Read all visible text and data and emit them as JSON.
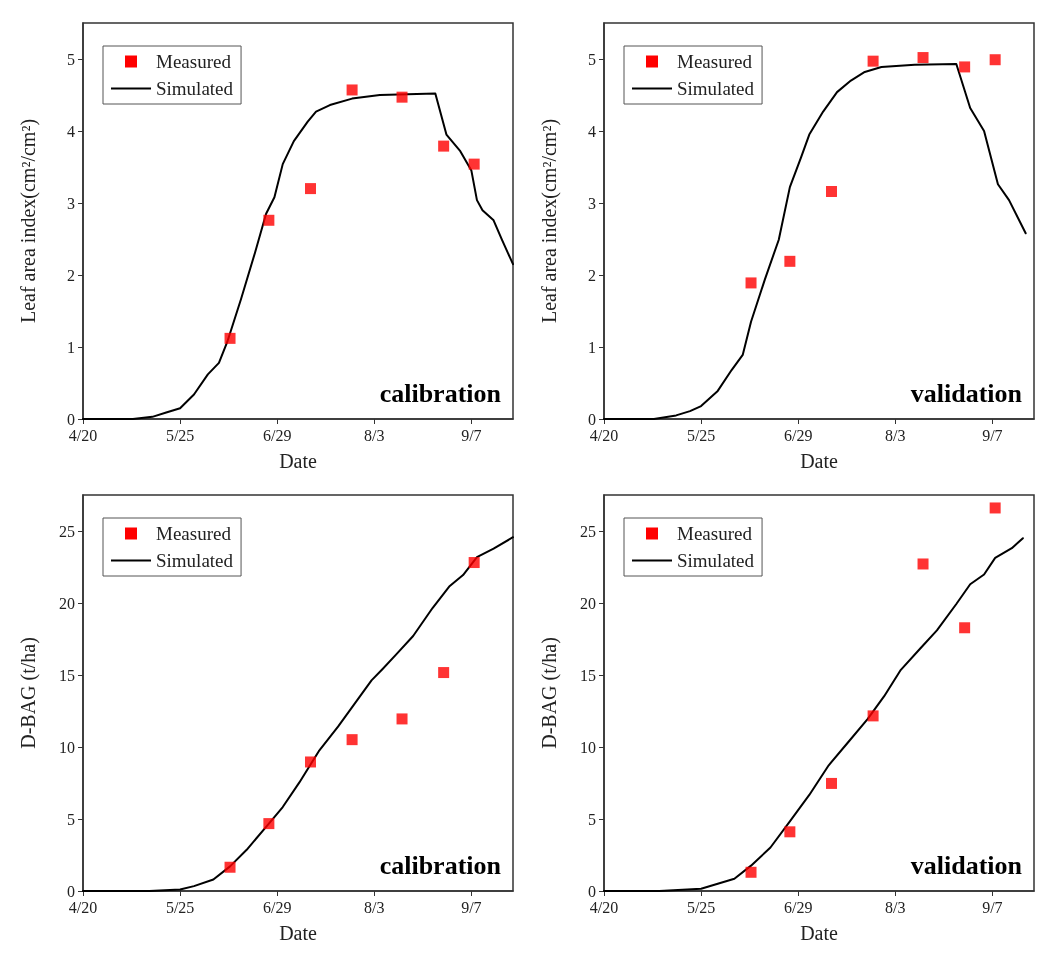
{
  "chart_data": [
    {
      "type": "scatter",
      "ylabel": "Leaf area index(cm²/cm²)",
      "xlabel": "Date",
      "annotations": [
        "calibration"
      ],
      "xlim": [
        "--04-20",
        "--09-22"
      ],
      "xticks": [
        {
          "value": "--04-20",
          "label": "4/20"
        },
        {
          "value": "--05-25",
          "label": "5/25"
        },
        {
          "value": "--06-29",
          "label": "6/29"
        },
        {
          "value": "--08-03",
          "label": "8/3"
        },
        {
          "value": "--09-07",
          "label": "9/7"
        }
      ],
      "ylim": [
        0,
        5.5
      ],
      "yticks": [
        0,
        1,
        2,
        3,
        4,
        5
      ],
      "grid": false,
      "legend": "top left",
      "series": [
        {
          "name": "Measured",
          "marker": "square",
          "color": "#ff0000",
          "x": [
            "--06-12",
            "--06-26",
            "--07-11",
            "--07-26",
            "--08-13",
            "--08-28",
            "--09-08"
          ],
          "values": [
            1.12,
            2.76,
            3.2,
            4.57,
            4.47,
            3.79,
            3.54
          ]
        },
        {
          "name": "Simulated",
          "type": "line",
          "marker": "none",
          "line_style": "solid",
          "color": "#000000",
          "x": [
            "--04-20",
            "--05-08",
            "--05-15",
            "--05-20",
            "--05-25",
            "--05-30",
            "--06-04",
            "--06-08",
            "--06-11",
            "--06-16",
            "--06-21",
            "--06-25",
            "--06-28",
            "--07-01",
            "--07-05",
            "--07-10",
            "--07-13",
            "--07-18",
            "--07-26",
            "--08-05",
            "--08-25",
            "--08-29",
            "--09-03",
            "--09-07",
            "--09-09",
            "--09-11",
            "--09-15",
            "--09-18",
            "--09-22"
          ],
          "values": [
            0,
            0,
            0.03,
            0.09,
            0.15,
            0.34,
            0.62,
            0.78,
            1.07,
            1.67,
            2.31,
            2.85,
            3.08,
            3.54,
            3.86,
            4.13,
            4.27,
            4.36,
            4.45,
            4.5,
            4.52,
            3.95,
            3.72,
            3.45,
            3.04,
            2.9,
            2.76,
            2.49,
            2.15
          ]
        }
      ]
    },
    {
      "type": "scatter",
      "ylabel": "Leaf area index(cm²/cm²)",
      "xlabel": "Date",
      "annotations": [
        "validation"
      ],
      "xlim": [
        "--04-20",
        "--09-22"
      ],
      "xticks": [
        {
          "value": "--04-20",
          "label": "4/20"
        },
        {
          "value": "--05-25",
          "label": "5/25"
        },
        {
          "value": "--06-29",
          "label": "6/29"
        },
        {
          "value": "--08-03",
          "label": "8/3"
        },
        {
          "value": "--09-07",
          "label": "9/7"
        }
      ],
      "ylim": [
        0,
        5.5
      ],
      "yticks": [
        0,
        1,
        2,
        3,
        4,
        5
      ],
      "grid": false,
      "legend": "top left",
      "series": [
        {
          "name": "Measured",
          "marker": "square",
          "color": "#ff0000",
          "x": [
            "--06-12",
            "--06-26",
            "--07-11",
            "--07-26",
            "--08-13",
            "--08-28",
            "--09-08"
          ],
          "values": [
            1.89,
            2.19,
            3.16,
            4.97,
            5.02,
            4.89,
            4.99
          ]
        },
        {
          "name": "Simulated",
          "type": "line",
          "marker": "none",
          "line_style": "solid",
          "color": "#000000",
          "x": [
            "--04-20",
            "--05-08",
            "--05-16",
            "--05-21",
            "--05-25",
            "--05-31",
            "--06-05",
            "--06-09",
            "--06-12",
            "--06-17",
            "--06-22",
            "--06-26",
            "--06-30",
            "--07-03",
            "--07-08",
            "--07-13",
            "--07-18",
            "--07-23",
            "--07-29",
            "--08-10",
            "--08-25",
            "--08-30",
            "--09-04",
            "--09-09",
            "--09-13",
            "--09-19"
          ],
          "values": [
            0,
            0,
            0.05,
            0.11,
            0.18,
            0.39,
            0.68,
            0.89,
            1.35,
            1.94,
            2.49,
            3.22,
            3.63,
            3.95,
            4.27,
            4.54,
            4.7,
            4.82,
            4.89,
            4.92,
            4.93,
            4.32,
            4.0,
            3.26,
            3.04,
            2.58
          ]
        }
      ]
    },
    {
      "type": "scatter",
      "ylabel": "D-BAG (t/ha)",
      "xlabel": "Date",
      "annotations": [
        "calibration"
      ],
      "xlim": [
        "--04-20",
        "--09-22"
      ],
      "xticks": [
        {
          "value": "--04-20",
          "label": "4/20"
        },
        {
          "value": "--05-25",
          "label": "5/25"
        },
        {
          "value": "--06-29",
          "label": "6/29"
        },
        {
          "value": "--08-03",
          "label": "8/3"
        },
        {
          "value": "--09-07",
          "label": "9/7"
        }
      ],
      "ylim": [
        0,
        27.5
      ],
      "yticks": [
        0,
        5,
        10,
        15,
        20,
        25
      ],
      "grid": false,
      "legend": "top left",
      "series": [
        {
          "name": "Measured",
          "marker": "square",
          "color": "#ff0000",
          "x": [
            "--06-12",
            "--06-26",
            "--07-11",
            "--07-26",
            "--08-13",
            "--08-28",
            "--09-08"
          ],
          "values": [
            1.65,
            4.68,
            8.96,
            10.51,
            11.95,
            15.17,
            22.81
          ]
        },
        {
          "name": "Simulated",
          "type": "line",
          "marker": "none",
          "line_style": "solid",
          "color": "#000000",
          "x": [
            "--04-20",
            "--05-14",
            "--05-25",
            "--05-30",
            "--06-06",
            "--06-12",
            "--06-18",
            "--06-26",
            "--07-01",
            "--07-07",
            "--07-14",
            "--07-21",
            "--07-27",
            "--08-02",
            "--08-06",
            "--08-11",
            "--08-17",
            "--08-24",
            "--08-30",
            "--09-04",
            "--09-09",
            "--09-15",
            "--09-22"
          ],
          "values": [
            0,
            0,
            0.11,
            0.34,
            0.8,
            1.71,
            2.86,
            4.68,
            5.83,
            7.54,
            9.71,
            11.43,
            13.03,
            14.63,
            15.42,
            16.45,
            17.71,
            19.65,
            21.14,
            21.94,
            23.19,
            23.77,
            24.57
          ]
        }
      ]
    },
    {
      "type": "scatter",
      "ylabel": "D-BAG (t/ha)",
      "xlabel": "Date",
      "annotations": [
        "validation"
      ],
      "xlim": [
        "--04-20",
        "--09-22"
      ],
      "xticks": [
        {
          "value": "--04-20",
          "label": "4/20"
        },
        {
          "value": "--05-25",
          "label": "5/25"
        },
        {
          "value": "--06-29",
          "label": "6/29"
        },
        {
          "value": "--08-03",
          "label": "8/3"
        },
        {
          "value": "--09-07",
          "label": "9/7"
        }
      ],
      "ylim": [
        0,
        27.5
      ],
      "yticks": [
        0,
        5,
        10,
        15,
        20,
        25
      ],
      "grid": false,
      "legend": "top left",
      "series": [
        {
          "name": "Measured",
          "marker": "square",
          "color": "#ff0000",
          "x": [
            "--06-12",
            "--06-26",
            "--07-11",
            "--07-26",
            "--08-13",
            "--08-28",
            "--09-08"
          ],
          "values": [
            1.3,
            4.11,
            7.47,
            12.16,
            22.71,
            18.28,
            26.6
          ]
        },
        {
          "name": "Simulated",
          "type": "line",
          "marker": "none",
          "line_style": "solid",
          "color": "#000000",
          "x": [
            "--04-20",
            "--05-10",
            "--05-25",
            "--05-31",
            "--06-06",
            "--06-12",
            "--06-19",
            "--06-26",
            "--07-03",
            "--07-10",
            "--07-17",
            "--07-24",
            "--07-30",
            "--08-05",
            "--08-12",
            "--08-18",
            "--08-25",
            "--08-30",
            "--09-04",
            "--09-08",
            "--09-14",
            "--09-18"
          ],
          "values": [
            0,
            0,
            0.16,
            0.5,
            0.85,
            1.76,
            3.02,
            4.84,
            6.67,
            8.73,
            10.33,
            11.93,
            13.53,
            15.36,
            16.84,
            18.1,
            19.93,
            21.3,
            21.98,
            23.13,
            23.81,
            24.5
          ]
        }
      ]
    }
  ]
}
